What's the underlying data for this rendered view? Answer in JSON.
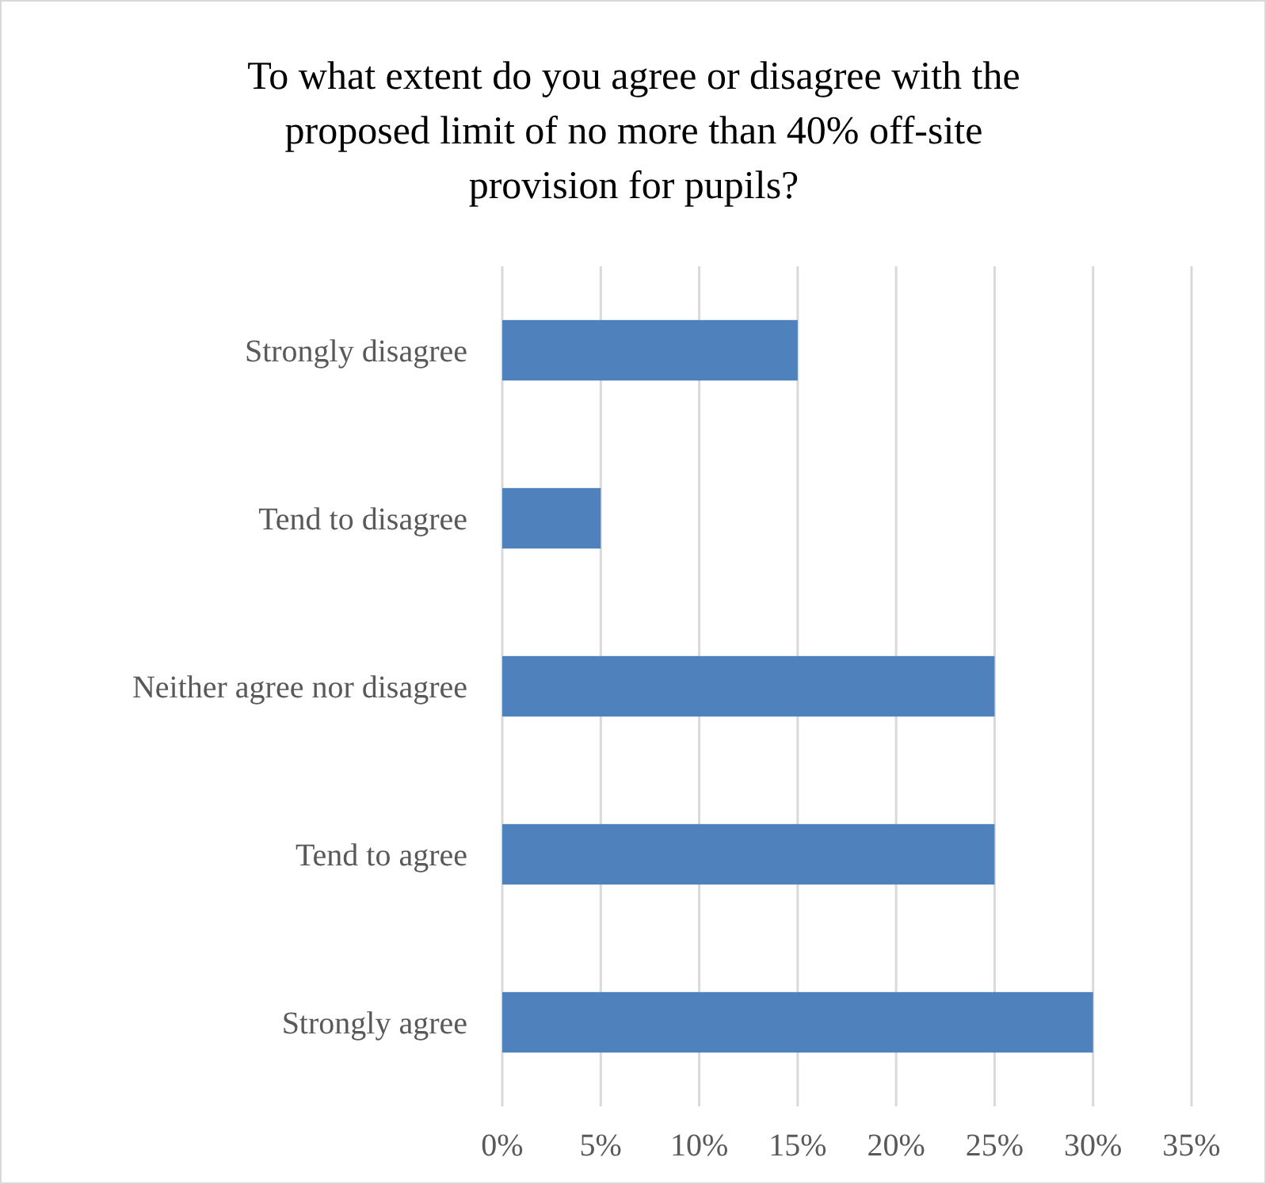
{
  "chart_data": {
    "type": "bar",
    "orientation": "horizontal",
    "title": "To what extent do you agree or disagree with the proposed limit of no more than 40% off-site provision for pupils?",
    "categories": [
      "Strongly disagree",
      "Tend to disagree",
      "Neither agree nor disagree",
      "Tend to agree",
      "Strongly agree"
    ],
    "values": [
      15,
      5,
      25,
      25,
      30
    ],
    "color": "#4f81bd",
    "xlim": [
      0,
      35
    ],
    "xticks": [
      {
        "value": 0,
        "label": "0%"
      },
      {
        "value": 5,
        "label": "5%"
      },
      {
        "value": 10,
        "label": "10%"
      },
      {
        "value": 15,
        "label": "15%"
      },
      {
        "value": 20,
        "label": "20%"
      },
      {
        "value": 25,
        "label": "25%"
      },
      {
        "value": 30,
        "label": "30%"
      },
      {
        "value": 35,
        "label": "35%"
      }
    ],
    "grid": "x"
  }
}
